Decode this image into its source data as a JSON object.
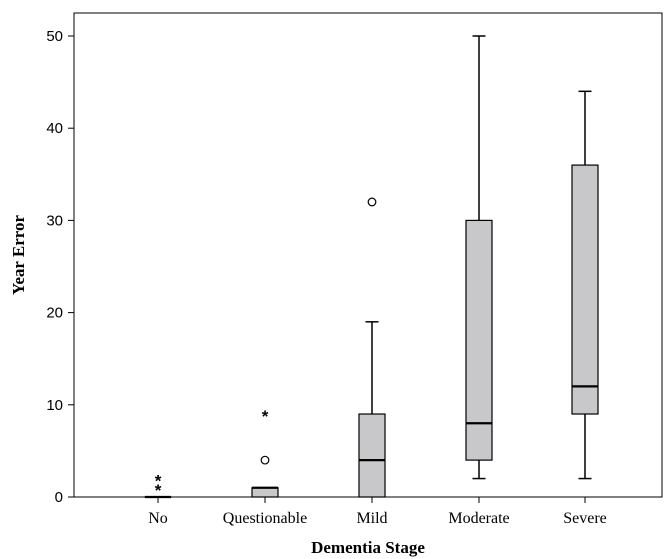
{
  "chart_data": {
    "type": "boxplot",
    "xlabel": "Dementia Stage",
    "ylabel": "Year Error",
    "ylim": [
      0,
      52
    ],
    "yticks": [
      0,
      10,
      20,
      30,
      40,
      50
    ],
    "box_color": "#c8c8ca",
    "categories": [
      "No",
      "Questionable",
      "Mild",
      "Moderate",
      "Severe"
    ],
    "boxes": [
      {
        "category": "No",
        "min": 0,
        "q1": 0,
        "median": 0,
        "q3": 0,
        "max": 0,
        "outliers": [],
        "extremes": [
          1,
          2
        ]
      },
      {
        "category": "Questionable",
        "min": 0,
        "q1": 0,
        "median": 1,
        "q3": 1,
        "max": 1,
        "outliers": [
          4
        ],
        "extremes": [
          9
        ]
      },
      {
        "category": "Mild",
        "min": 0,
        "q1": 0,
        "median": 4,
        "q3": 9,
        "max": 19,
        "outliers": [
          32
        ],
        "extremes": []
      },
      {
        "category": "Moderate",
        "min": 2,
        "q1": 4,
        "median": 8,
        "q3": 30,
        "max": 50,
        "outliers": [],
        "extremes": []
      },
      {
        "category": "Severe",
        "min": 2,
        "q1": 9,
        "median": 12,
        "q3": 36,
        "max": 44,
        "outliers": [],
        "extremes": []
      }
    ]
  }
}
